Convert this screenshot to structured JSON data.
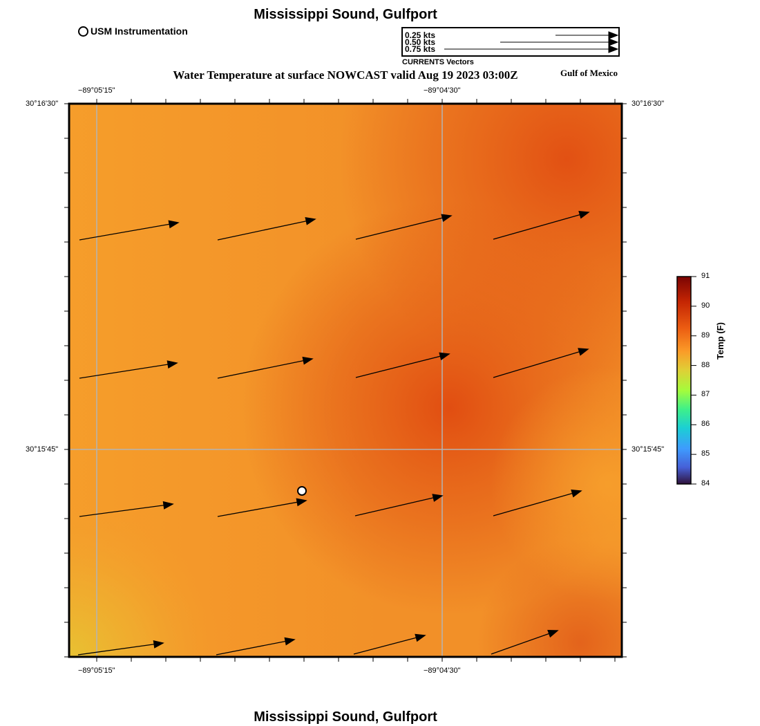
{
  "header": {
    "title": "Mississippi Sound, Gulfport",
    "subtitle": "Water Temperature at surface NOWCAST valid Aug 19 2023 03:00Z",
    "region": "Gulf of Mexico",
    "footer_title": "Mississippi Sound, Gulfport"
  },
  "legend": {
    "station_label": "USM Instrumentation",
    "vector_scale": [
      {
        "label": "0.25 kts",
        "speed": 0.25
      },
      {
        "label": "0.50 kts",
        "speed": 0.5
      },
      {
        "label": "0.75 kts",
        "speed": 0.75
      }
    ],
    "vector_caption": "CURRENTS Vectors"
  },
  "axes": {
    "lon_labels": [
      "−89°05'15\"",
      "−89°04'30\""
    ],
    "lat_labels": [
      "30°16'30\"",
      "30°15'45\""
    ]
  },
  "colorbar": {
    "title": "Temp (F)",
    "min": 84,
    "max": 91,
    "ticks": [
      "91",
      "90",
      "89",
      "88",
      "87",
      "86",
      "85",
      "84"
    ]
  },
  "map": {
    "station_marker": "USM station",
    "current_vectors": [
      {
        "name": "vector-r1-c1"
      },
      {
        "name": "vector-r1-c2"
      },
      {
        "name": "vector-r1-c3"
      },
      {
        "name": "vector-r1-c4"
      },
      {
        "name": "vector-r2-c1"
      },
      {
        "name": "vector-r2-c2"
      },
      {
        "name": "vector-r2-c3"
      },
      {
        "name": "vector-r2-c4"
      },
      {
        "name": "vector-r3-c1"
      },
      {
        "name": "vector-r3-c2"
      },
      {
        "name": "vector-r3-c3"
      },
      {
        "name": "vector-r3-c4"
      },
      {
        "name": "vector-r4-c1"
      },
      {
        "name": "vector-r4-c2"
      },
      {
        "name": "vector-r4-c3"
      },
      {
        "name": "vector-r4-c4"
      }
    ]
  },
  "colors": {
    "warm_field": "#f7a02c",
    "hot_field": "#e15a14",
    "cool_corner": "#e6b835",
    "gridline": "#b4b4b4"
  }
}
